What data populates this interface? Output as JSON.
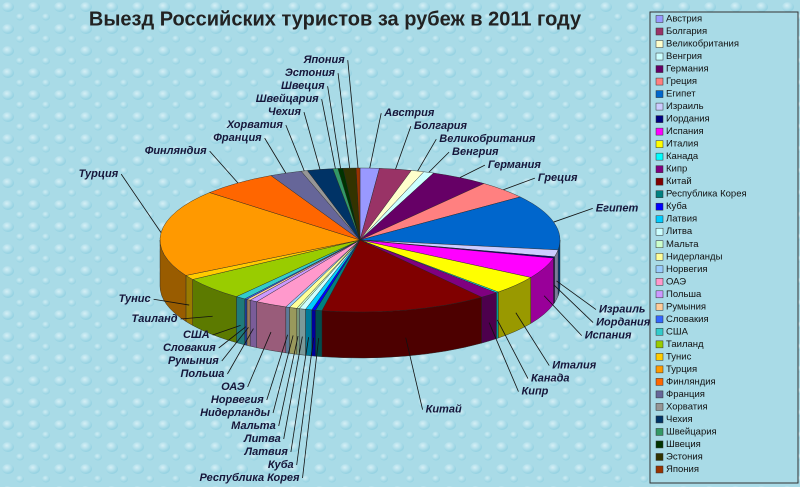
{
  "chart_data": {
    "type": "pie3d",
    "title": "Выезд Российских туристов за рубеж в 2011 году",
    "categories": [
      "Австрия",
      "Болгария",
      "Великобритания",
      "Венгрия",
      "Германия",
      "Греция",
      "Египет",
      "Израиль",
      "Иордания",
      "Испания",
      "Италия",
      "Канада",
      "Кипр",
      "Китай",
      "Республика Корея",
      "Куба",
      "Латвия",
      "Литва",
      "Мальта",
      "Нидерланды",
      "Норвегия",
      "ОАЭ",
      "Польша",
      "Румыния",
      "Словакия",
      "США",
      "Таиланд",
      "Тунис",
      "Турция",
      "Финляндия",
      "Франция",
      "Хорватия",
      "Чехия",
      "Швейцария",
      "Швеция",
      "Эстония",
      "Япония"
    ],
    "values": [
      1.5,
      2.5,
      1,
      0.8,
      4.5,
      4,
      12,
      1.5,
      0.3,
      4.5,
      4,
      0.2,
      1.5,
      13,
      0.5,
      0.3,
      0.5,
      0.5,
      0.2,
      0.6,
      0.3,
      2.5,
      0.6,
      0.3,
      0.2,
      0.8,
      5,
      1,
      19,
      6,
      2.5,
      0.5,
      2,
      0.4,
      0.4,
      1,
      0.3
    ],
    "colors": [
      "#9999ff",
      "#993366",
      "#ffffcc",
      "#ccffff",
      "#660066",
      "#ff8080",
      "#0066cc",
      "#ccccff",
      "#000080",
      "#ff00ff",
      "#ffff00",
      "#00ffff",
      "#800080",
      "#800000",
      "#008080",
      "#0000ff",
      "#00ccff",
      "#ccffff",
      "#ccffcc",
      "#ffff99",
      "#99ccff",
      "#ff99cc",
      "#cc99ff",
      "#ffcc99",
      "#3366ff",
      "#33cccc",
      "#99cc00",
      "#ffcc00",
      "#ff9900",
      "#ff6600",
      "#666699",
      "#969696",
      "#003366",
      "#339966",
      "#003300",
      "#333300",
      "#993300"
    ],
    "legend": "right"
  }
}
